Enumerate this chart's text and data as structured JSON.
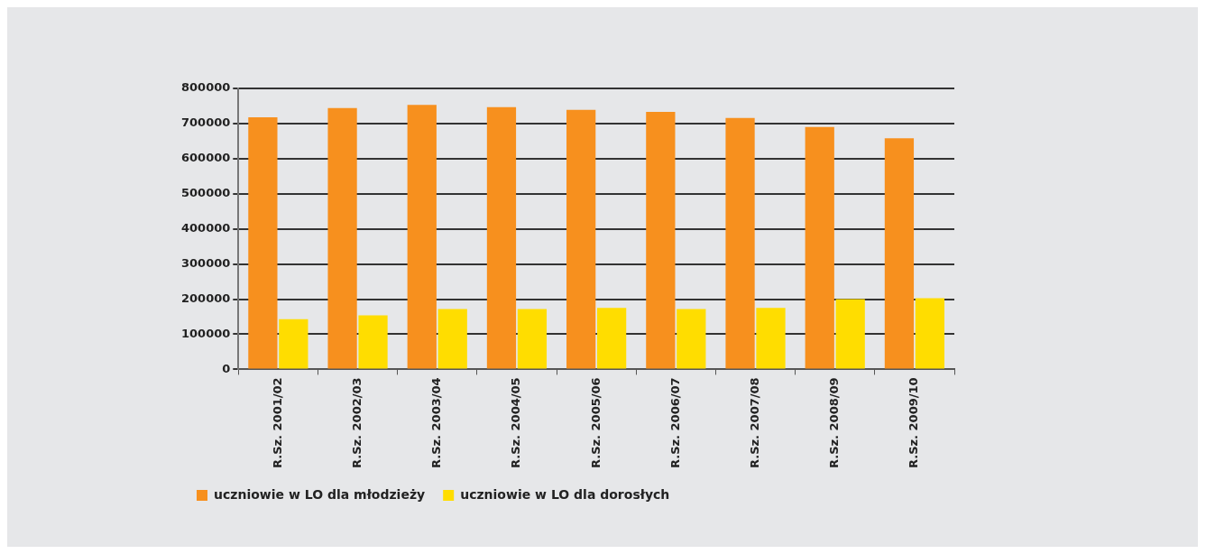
{
  "chart_data": {
    "type": "bar",
    "categories": [
      "R.Sz. 2001/02",
      "R.Sz. 2002/03",
      "R.Sz. 2003/04",
      "R.Sz. 2004/05",
      "R.Sz. 2005/06",
      "R.Sz. 2006/07",
      "R.Sz. 2007/08",
      "R.Sz. 2008/09",
      "R.Sz. 2009/10"
    ],
    "series": [
      {
        "name": "uczniowie w LO dla młodzieży",
        "color": "#f7901e",
        "values": [
          718000,
          744000,
          753000,
          747000,
          739000,
          733000,
          716000,
          690000,
          658000
        ]
      },
      {
        "name": "uczniowie w LO dla dorosłych",
        "color": "#ffdd00",
        "values": [
          143000,
          154000,
          172000,
          172000,
          175000,
          172000,
          175000,
          200000,
          203000
        ]
      }
    ],
    "ylim": [
      0,
      800000
    ],
    "yticks": [
      0,
      100000,
      200000,
      300000,
      400000,
      500000,
      600000,
      700000,
      800000
    ],
    "grid": "y",
    "legend": "bottom left"
  }
}
